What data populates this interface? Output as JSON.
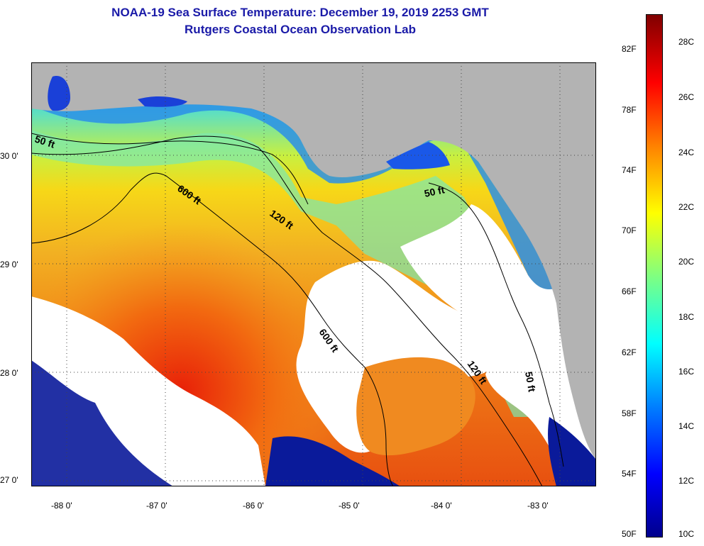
{
  "header": {
    "title": "NOAA-19 Sea Surface Temperature:  December 19, 2019 2253 GMT",
    "subtitle": "Rutgers Coastal Ocean Observation Lab"
  },
  "map": {
    "lat_labels": [
      "30 0'",
      "29 0'",
      "28 0'",
      "27 0'"
    ],
    "lon_labels": [
      "-88 0'",
      "-87 0'",
      "-86 0'",
      "-85 0'",
      "-84 0'",
      "-83 0'"
    ],
    "contours": [
      {
        "label": "50 ft"
      },
      {
        "label": "600 ft"
      },
      {
        "label": "120 ft"
      },
      {
        "label": "50 ft"
      },
      {
        "label": "600 ft"
      },
      {
        "label": "120 ft"
      },
      {
        "label": "50 ft"
      }
    ],
    "colors": {
      "land": "#b3b3b3",
      "cloud": "#ffffff",
      "contour": "#000000",
      "grid": "#444444"
    }
  },
  "colorbar": {
    "fahrenheit_labels": [
      "82F",
      "78F",
      "74F",
      "70F",
      "66F",
      "62F",
      "58F",
      "54F",
      "50F"
    ],
    "celsius_labels": [
      "28C",
      "26C",
      "24C",
      "22C",
      "20C",
      "18C",
      "16C",
      "14C",
      "12C",
      "10C"
    ],
    "range_c": [
      10,
      29.5
    ],
    "colormap": [
      "#00008c",
      "#0000ff",
      "#0080ff",
      "#00ffff",
      "#80ff80",
      "#ffff00",
      "#ff8000",
      "#ff0000",
      "#800000"
    ]
  }
}
